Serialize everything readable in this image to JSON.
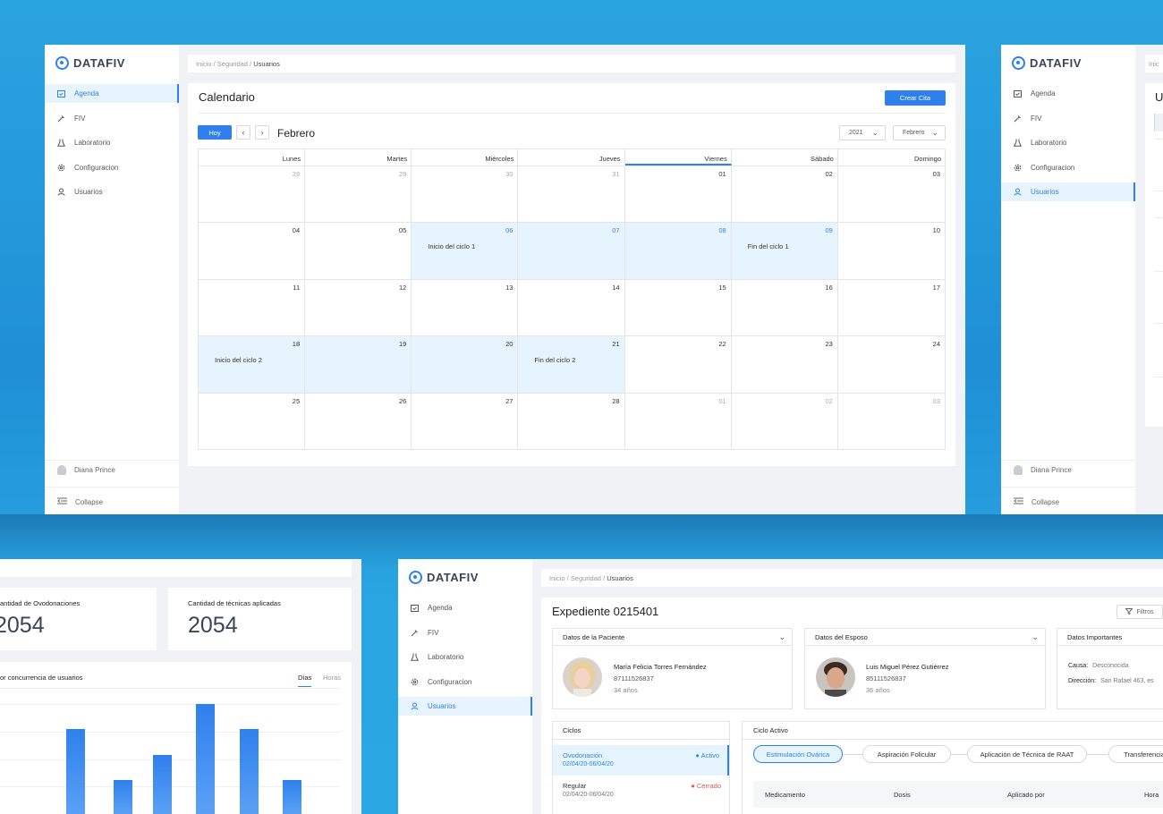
{
  "app": {
    "logo_text": "DATAFIV",
    "brand_color": "#2f80ed"
  },
  "nav": {
    "agenda": "Agenda",
    "fiv": "FIV",
    "laboratorio": "Laboratorio",
    "configuracion": "Configuracion",
    "usuarios": "Usuarios"
  },
  "user": {
    "name": "Diana Prince",
    "collapse": "Collapse"
  },
  "breadcrumb": {
    "home": "Inicio",
    "section": "Seguridad",
    "current": "Usuarios"
  },
  "calendar": {
    "title": "Calendario",
    "create_button": "Crear Cita",
    "today_button": "Hoy",
    "prev_icon": "chevron-left-icon",
    "next_icon": "chevron-right-icon",
    "month_label": "Febrero",
    "year_select": "2021",
    "month_select": "Febrero",
    "weekdays": [
      "Lunes",
      "Martes",
      "Miércoles",
      "Jueves",
      "Viernes",
      "Sábado",
      "Domingo"
    ],
    "days": [
      {
        "n": "28",
        "muted": true
      },
      {
        "n": "29",
        "muted": true
      },
      {
        "n": "30",
        "muted": true
      },
      {
        "n": "31",
        "muted": true
      },
      {
        "n": "01"
      },
      {
        "n": "02"
      },
      {
        "n": "03"
      },
      {
        "n": "04"
      },
      {
        "n": "05"
      },
      {
        "n": "06",
        "hl": true,
        "blue": true,
        "event": "Inicio del ciclo 1"
      },
      {
        "n": "07",
        "hl": true,
        "blue": true
      },
      {
        "n": "08",
        "hl": true,
        "blue": true
      },
      {
        "n": "09",
        "hl": true,
        "blue": true,
        "event": "Fin del ciclo 1"
      },
      {
        "n": "10"
      },
      {
        "n": "11"
      },
      {
        "n": "12"
      },
      {
        "n": "13"
      },
      {
        "n": "14"
      },
      {
        "n": "15"
      },
      {
        "n": "16"
      },
      {
        "n": "17"
      },
      {
        "n": "18",
        "hl": true,
        "event": "Inicio del ciclo  2"
      },
      {
        "n": "19",
        "hl": true
      },
      {
        "n": "20",
        "hl": true
      },
      {
        "n": "21",
        "hl": true,
        "event": "Fin del ciclo 2"
      },
      {
        "n": "22"
      },
      {
        "n": "23"
      },
      {
        "n": "24"
      },
      {
        "n": "25"
      },
      {
        "n": "26"
      },
      {
        "n": "27"
      },
      {
        "n": "28"
      },
      {
        "n": "01",
        "muted": true
      },
      {
        "n": "02",
        "muted": true
      },
      {
        "n": "03",
        "muted": true
      }
    ]
  },
  "window2": {
    "title_partial": "U",
    "crumb_partial": "Inic"
  },
  "dashboard": {
    "card1_label": "antidad de Ovodonaciones",
    "card1_value": "2054",
    "card2_label": "Cantidad de técnicas aplicadas",
    "card2_value": "2054",
    "chart_title": "or concurrencia de usuarios",
    "tab_days": "Días",
    "tab_hours": "Horas"
  },
  "chart_data": {
    "type": "bar",
    "title": "or concurrencia de usuarios",
    "values": [
      95,
      38,
      66,
      123,
      95,
      38
    ],
    "ylim": [
      0,
      123
    ],
    "grid": true,
    "color": "#2f80ed"
  },
  "expediente": {
    "title": "Expediente 0215401",
    "filter_button": "Filtros",
    "paciente": {
      "header": "Datos de la Paciente",
      "name": "María Felicia Torres Fernández",
      "phone": "87111526837",
      "age": "34 años"
    },
    "esposo": {
      "header": "Datos del Esposo",
      "name": "Luis Miguel Pérez Gutiérrez",
      "phone": "85111526837",
      "age": "36 años"
    },
    "importantes": {
      "header": "Datos Importantes",
      "causa_label": "Causa:",
      "causa_value": "Desconocida",
      "direccion_label": "Dirección:",
      "direccion_value": "San Rafael 463, es"
    },
    "ciclos": {
      "header": "Ciclos",
      "items": [
        {
          "name": "Ovodonación",
          "dates": "02/04/20-06/04/20",
          "status": "Activo",
          "status_color": "#2f80ed"
        },
        {
          "name": "Regular",
          "dates": "02/04/20-06/04/20",
          "status": "Cerrado",
          "status_color": "#e5534b"
        }
      ]
    },
    "ciclo_activo": {
      "header": "Ciclo Activo",
      "stages": [
        "Estimulación Ovárica",
        "Aspiración Folicular",
        "Aplicación de Técnica de RAAT",
        "Transferencia"
      ],
      "columns": [
        "Medicamento",
        "Dosis",
        "Aplicado por",
        "Hora"
      ]
    }
  }
}
